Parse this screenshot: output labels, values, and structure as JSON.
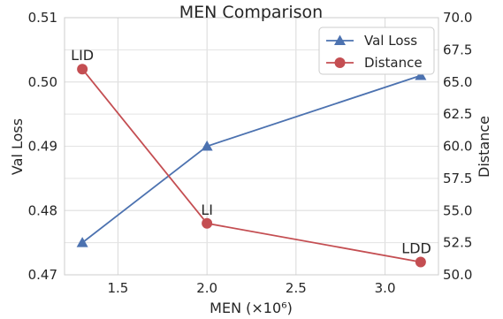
{
  "chart_data": {
    "type": "line",
    "title": "MEN Comparison",
    "xlabel": "MEN (×10⁶)",
    "ylabel_left": "Val Loss",
    "ylabel_right": "Distance",
    "xlim": [
      1.2,
      3.3
    ],
    "ylim_left": [
      0.47,
      0.51
    ],
    "ylim_right": [
      50.0,
      70.0
    ],
    "xticks": [
      1.5,
      2.0,
      2.5,
      3.0
    ],
    "xtick_labels": [
      "1.5",
      "2.0",
      "2.5",
      "3.0"
    ],
    "yticks_left": [
      0.47,
      0.48,
      0.49,
      0.5,
      0.51
    ],
    "ytick_labels_left": [
      "0.47",
      "0.48",
      "0.49",
      "0.50",
      "0.51"
    ],
    "yticks_right": [
      50.0,
      52.5,
      55.0,
      57.5,
      60.0,
      62.5,
      65.0,
      67.5,
      70.0
    ],
    "ytick_labels_right": [
      "50.0",
      "52.5",
      "55.0",
      "57.5",
      "60.0",
      "62.5",
      "65.0",
      "67.5",
      "70.0"
    ],
    "grid": true,
    "legend_position": "top-right",
    "series": [
      {
        "name": "Val Loss",
        "axis": "left",
        "color": "#4c72b0",
        "marker": "triangle",
        "x": [
          1.3,
          2.0,
          3.2
        ],
        "y": [
          0.475,
          0.49,
          0.501
        ]
      },
      {
        "name": "Distance",
        "axis": "right",
        "color": "#c44e52",
        "marker": "circle",
        "x": [
          1.3,
          2.0,
          3.2
        ],
        "y": [
          66.0,
          54.0,
          51.0
        ]
      }
    ],
    "annotations": [
      {
        "text": "LID",
        "x": 1.3,
        "series": "Distance"
      },
      {
        "text": "LI",
        "x": 2.0,
        "series": "Distance"
      },
      {
        "text": "LDD",
        "x": 3.2,
        "series": "Distance"
      }
    ]
  }
}
